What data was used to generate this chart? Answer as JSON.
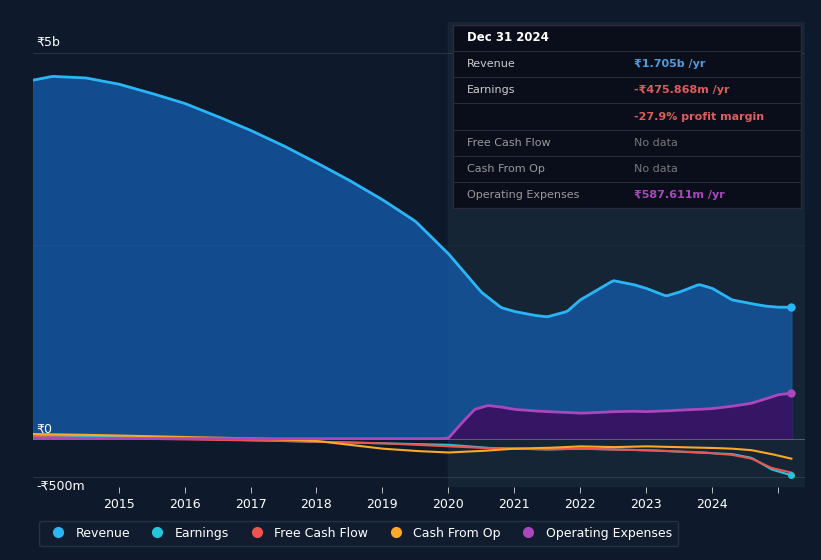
{
  "bg_color": "#0e1a2b",
  "plot_bg_color": "#0e1a2b",
  "ylabel_top": "₹5b",
  "ylabel_zero": "₹0",
  "ylabel_neg": "-₹500m",
  "legend": [
    {
      "label": "Revenue",
      "color": "#29b6f6"
    },
    {
      "label": "Earnings",
      "color": "#26c6da"
    },
    {
      "label": "Free Cash Flow",
      "color": "#ef5350"
    },
    {
      "label": "Cash From Op",
      "color": "#ffa726"
    },
    {
      "label": "Operating Expenses",
      "color": "#ab47bc"
    }
  ],
  "info_box_bg": "#0a0e1a",
  "info_box_border": "#2a2a3a",
  "revenue_fill_color": "#1456a0",
  "opex_fill_color": "#3a1060",
  "highlight_color": "#162535"
}
